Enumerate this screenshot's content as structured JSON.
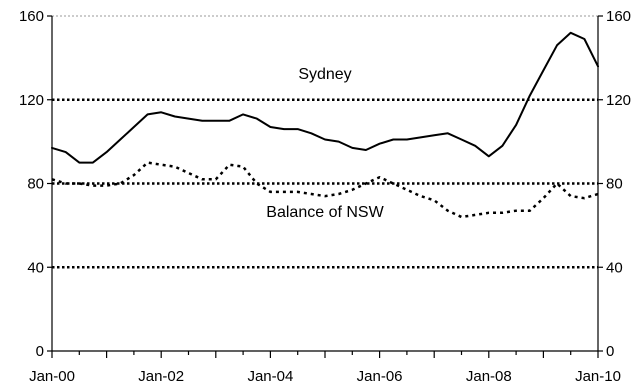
{
  "chart_data": {
    "type": "line",
    "title": "",
    "xlabel": "",
    "ylabel": "",
    "ylim": [
      0,
      160
    ],
    "yticks": [
      0,
      40,
      80,
      120,
      160
    ],
    "yticks_right": [
      0,
      40,
      80,
      120,
      160
    ],
    "xlim": [
      "2000-01",
      "2010-01"
    ],
    "xtick_labels": [
      "Jan-00",
      "Jan-02",
      "Jan-04",
      "Jan-06",
      "Jan-08",
      "Jan-10"
    ],
    "grid": "horizontal dotted at 40, 80, 120",
    "colors": {
      "line": "#000000",
      "grid": "#000000",
      "background": "#ffffff"
    },
    "series": [
      {
        "name": "Sydney",
        "style": "solid",
        "x": [
          "2000-01",
          "2000-04",
          "2000-07",
          "2000-10",
          "2001-01",
          "2001-04",
          "2001-07",
          "2001-10",
          "2002-01",
          "2002-04",
          "2002-07",
          "2002-10",
          "2003-01",
          "2003-04",
          "2003-07",
          "2003-10",
          "2004-01",
          "2004-04",
          "2004-07",
          "2004-10",
          "2005-01",
          "2005-04",
          "2005-07",
          "2005-10",
          "2006-01",
          "2006-04",
          "2006-07",
          "2006-10",
          "2007-01",
          "2007-04",
          "2007-07",
          "2007-10",
          "2008-01",
          "2008-04",
          "2008-07",
          "2008-10",
          "2009-01",
          "2009-04",
          "2009-07",
          "2009-10",
          "2010-01"
        ],
        "values": [
          97,
          95,
          90,
          90,
          95,
          101,
          107,
          113,
          114,
          112,
          111,
          110,
          110,
          110,
          113,
          111,
          107,
          106,
          106,
          104,
          101,
          100,
          97,
          96,
          99,
          101,
          101,
          102,
          103,
          104,
          101,
          98,
          93,
          98,
          108,
          122,
          134,
          146,
          152,
          149,
          136
        ]
      },
      {
        "name": "Balance of NSW",
        "style": "dashed",
        "x": [
          "2000-01",
          "2000-04",
          "2000-07",
          "2000-10",
          "2001-01",
          "2001-04",
          "2001-07",
          "2001-10",
          "2002-01",
          "2002-04",
          "2002-07",
          "2002-10",
          "2003-01",
          "2003-04",
          "2003-07",
          "2003-10",
          "2004-01",
          "2004-04",
          "2004-07",
          "2004-10",
          "2005-01",
          "2005-04",
          "2005-07",
          "2005-10",
          "2006-01",
          "2006-04",
          "2006-07",
          "2006-10",
          "2007-01",
          "2007-04",
          "2007-07",
          "2007-10",
          "2008-01",
          "2008-04",
          "2008-07",
          "2008-10",
          "2009-01",
          "2009-04",
          "2009-07",
          "2009-10",
          "2010-01"
        ],
        "values": [
          82,
          80,
          80,
          79,
          79,
          80,
          84,
          90,
          89,
          88,
          85,
          82,
          82,
          89,
          88,
          80,
          76,
          76,
          76,
          75,
          74,
          75,
          77,
          80,
          83,
          80,
          77,
          74,
          72,
          67,
          64,
          65,
          66,
          66,
          67,
          67,
          73,
          80,
          74,
          73,
          75
        ]
      }
    ],
    "annotations": [
      {
        "text": "Sydney",
        "x": "2005-01",
        "y": 130
      },
      {
        "text": "Balance of NSW",
        "x": "2005-01",
        "y": 64
      }
    ]
  }
}
